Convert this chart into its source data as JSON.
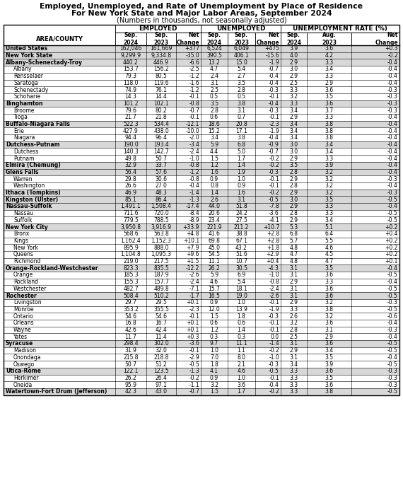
{
  "title1": "Employed, Unemployed, and Rate of Unemployment by Place of Residence",
  "title2": "For New York State and Major Labor Areas, September 2024",
  "title3": "(Numbers in thousands, not seasonally adjusted)",
  "rows": [
    [
      "United States",
      "162,046",
      "161,669",
      "+377",
      "6,524",
      "6,049",
      "+475",
      "3.9",
      "3.6",
      "+0.3"
    ],
    [
      "New York State",
      "9,299.9",
      "9,334.8",
      "-35.0",
      "390.5",
      "406.1",
      "-15.6",
      "4.0",
      "4.2",
      "-0.2"
    ],
    [
      "Albany-Schenectady-Troy",
      "440.2",
      "446.9",
      "-6.6",
      "13.2",
      "15.0",
      "-1.9",
      "2.9",
      "3.3",
      "-0.4"
    ],
    [
      "  Albany",
      "153.7",
      "156.2",
      "-2.5",
      "4.7",
      "5.4",
      "-0.7",
      "3.0",
      "3.4",
      "-0.4"
    ],
    [
      "  Rensselaer",
      "79.3",
      "80.5",
      "-1.2",
      "2.4",
      "2.7",
      "-0.4",
      "2.9",
      "3.3",
      "-0.4"
    ],
    [
      "  Saratoga",
      "118.0",
      "119.6",
      "-1.6",
      "3.1",
      "3.5",
      "-0.4",
      "2.5",
      "2.9",
      "-0.4"
    ],
    [
      "  Schenectady",
      "74.9",
      "76.1",
      "-1.2",
      "2.5",
      "2.8",
      "-0.3",
      "3.3",
      "3.6",
      "-0.3"
    ],
    [
      "  Schoharie",
      "14.3",
      "14.4",
      "-0.1",
      "0.5",
      "0.5",
      "-0.1",
      "3.2",
      "3.5",
      "-0.3"
    ],
    [
      "Binghamton",
      "101.2",
      "102.1",
      "-0.8",
      "3.5",
      "3.8",
      "-0.4",
      "3.3",
      "3.6",
      "-0.3"
    ],
    [
      "  Broome",
      "79.6",
      "80.2",
      "-0.7",
      "2.8",
      "3.1",
      "-0.3",
      "3.4",
      "3.7",
      "-0.3"
    ],
    [
      "  Tioga",
      "21.7",
      "21.8",
      "-0.1",
      "0.6",
      "0.7",
      "-0.1",
      "2.9",
      "3.3",
      "-0.4"
    ],
    [
      "Buffalo-Niagara Falls",
      "522.3",
      "534.4",
      "-12.1",
      "18.6",
      "20.8",
      "-2.3",
      "3.4",
      "3.8",
      "-0.4"
    ],
    [
      "  Erie",
      "427.9",
      "438.0",
      "-10.0",
      "15.2",
      "17.1",
      "-1.9",
      "3.4",
      "3.8",
      "-0.4"
    ],
    [
      "  Niagara",
      "94.4",
      "96.4",
      "-2.0",
      "3.4",
      "3.8",
      "-0.4",
      "3.4",
      "3.8",
      "-0.4"
    ],
    [
      "Dutchess-Putnam",
      "190.0",
      "193.4",
      "-3.4",
      "5.9",
      "6.8",
      "-0.9",
      "3.0",
      "3.4",
      "-0.4"
    ],
    [
      "  Dutchess",
      "140.3",
      "142.7",
      "-2.4",
      "4.4",
      "5.0",
      "-0.7",
      "3.0",
      "3.4",
      "-0.4"
    ],
    [
      "  Putnam",
      "49.8",
      "50.7",
      "-1.0",
      "1.5",
      "1.7",
      "-0.2",
      "2.9",
      "3.3",
      "-0.4"
    ],
    [
      "Elmira (Chemung)",
      "32.9",
      "33.7",
      "-0.8",
      "1.2",
      "1.4",
      "-0.2",
      "3.5",
      "3.9",
      "-0.4"
    ],
    [
      "Glens Falls",
      "56.4",
      "57.6",
      "-1.2",
      "1.6",
      "1.9",
      "-0.3",
      "2.8",
      "3.2",
      "-0.4"
    ],
    [
      "  Warren",
      "29.8",
      "30.6",
      "-0.8",
      "0.9",
      "1.0",
      "-0.1",
      "2.9",
      "3.2",
      "-0.3"
    ],
    [
      "  Washington",
      "26.6",
      "27.0",
      "-0.4",
      "0.8",
      "0.9",
      "-0.1",
      "2.8",
      "3.2",
      "-0.4"
    ],
    [
      "Ithaca (Tompkins)",
      "46.9",
      "48.3",
      "-1.4",
      "1.4",
      "1.6",
      "-0.2",
      "2.9",
      "3.2",
      "-0.3"
    ],
    [
      "Kingston (Ulster)",
      "85.1",
      "86.4",
      "-1.3",
      "2.6",
      "3.1",
      "-0.5",
      "3.0",
      "3.5",
      "-0.5"
    ],
    [
      "Nassau-Suffolk",
      "1,491.1",
      "1,508.4",
      "-17.4",
      "44.0",
      "51.8",
      "-7.8",
      "2.9",
      "3.3",
      "-0.4"
    ],
    [
      "  Nassau",
      "711.6",
      "720.0",
      "-8.4",
      "20.6",
      "24.2",
      "-3.6",
      "2.8",
      "3.3",
      "-0.5"
    ],
    [
      "  Suffolk",
      "779.5",
      "788.5",
      "-8.9",
      "23.4",
      "27.5",
      "-4.1",
      "2.9",
      "3.4",
      "-0.5"
    ],
    [
      "New York City",
      "3,950.8",
      "3,916.9",
      "+33.9",
      "221.9",
      "211.2",
      "+10.7",
      "5.3",
      "5.1",
      "+0.2"
    ],
    [
      "  Bronx",
      "568.6",
      "563.8",
      "+4.8",
      "41.6",
      "38.8",
      "+2.8",
      "6.8",
      "6.4",
      "+0.4"
    ],
    [
      "  Kings",
      "1,162.4",
      "1,152.3",
      "+10.1",
      "69.8",
      "67.1",
      "+2.8",
      "5.7",
      "5.5",
      "+0.2"
    ],
    [
      "  New York",
      "895.9",
      "888.0",
      "+7.9",
      "45.0",
      "43.2",
      "+1.8",
      "4.8",
      "4.6",
      "+0.2"
    ],
    [
      "  Queens",
      "1,104.8",
      "1,095.3",
      "+9.6",
      "54.5",
      "51.6",
      "+2.9",
      "4.7",
      "4.5",
      "+0.2"
    ],
    [
      "  Richmond",
      "219.0",
      "217.5",
      "+1.5",
      "11.1",
      "10.7",
      "+0.4",
      "4.8",
      "4.7",
      "+0.1"
    ],
    [
      "Orange-Rockland-Westchester",
      "823.3",
      "835.5",
      "-12.2",
      "26.2",
      "30.5",
      "-4.3",
      "3.1",
      "3.5",
      "-0.4"
    ],
    [
      "  Orange",
      "185.3",
      "187.9",
      "-2.6",
      "5.9",
      "6.9",
      "-1.0",
      "3.1",
      "3.6",
      "-0.5"
    ],
    [
      "  Rockland",
      "155.3",
      "157.7",
      "-2.4",
      "4.6",
      "5.4",
      "-0.8",
      "2.9",
      "3.3",
      "-0.4"
    ],
    [
      "  Westchester",
      "482.7",
      "489.8",
      "-7.1",
      "15.7",
      "18.1",
      "-2.4",
      "3.1",
      "3.6",
      "-0.5"
    ],
    [
      "Rochester",
      "508.4",
      "510.2",
      "-1.7",
      "16.5",
      "19.0",
      "-2.6",
      "3.1",
      "3.6",
      "-0.5"
    ],
    [
      "  Livingston",
      "29.7",
      "29.5",
      "+0.1",
      "0.9",
      "1.0",
      "-0.1",
      "2.9",
      "3.2",
      "-0.3"
    ],
    [
      "  Monroe",
      "353.2",
      "355.5",
      "-2.3",
      "12.0",
      "13.9",
      "-1.9",
      "3.3",
      "3.8",
      "-0.5"
    ],
    [
      "  Ontario",
      "54.6",
      "54.6",
      "-0.1",
      "1.5",
      "1.8",
      "-0.3",
      "2.6",
      "3.2",
      "-0.6"
    ],
    [
      "  Orleans",
      "16.8",
      "16.7",
      "+0.1",
      "0.6",
      "0.6",
      "-0.1",
      "3.2",
      "3.6",
      "-0.4"
    ],
    [
      "  Wayne",
      "42.6",
      "42.4",
      "+0.1",
      "1.2",
      "1.4",
      "-0.1",
      "2.8",
      "3.1",
      "-0.3"
    ],
    [
      "  Yates",
      "11.7",
      "11.4",
      "+0.3",
      "0.3",
      "0.3",
      "0.0",
      "2.5",
      "2.9",
      "-0.4"
    ],
    [
      "Syracuse",
      "298.4",
      "302.0",
      "-3.6",
      "9.7",
      "11.1",
      "-1.4",
      "3.1",
      "3.6",
      "-0.5"
    ],
    [
      "  Madison",
      "31.9",
      "32.0",
      "-0.1",
      "1.0",
      "1.1",
      "-0.2",
      "2.9",
      "3.4",
      "-0.5"
    ],
    [
      "  Onondaga",
      "215.8",
      "218.8",
      "-2.9",
      "7.0",
      "8.0",
      "-1.0",
      "3.1",
      "3.5",
      "-0.4"
    ],
    [
      "  Oswego",
      "50.7",
      "51.2",
      "-0.5",
      "1.8",
      "2.1",
      "-0.3",
      "3.4",
      "3.9",
      "-0.5"
    ],
    [
      "Utica-Rome",
      "122.1",
      "123.5",
      "-1.3",
      "4.1",
      "4.6",
      "-0.5",
      "3.3",
      "3.6",
      "-0.3"
    ],
    [
      "  Herkimer",
      "26.2",
      "26.4",
      "-0.2",
      "0.9",
      "1.0",
      "-0.1",
      "3.3",
      "3.5",
      "-0.3"
    ],
    [
      "  Oneida",
      "95.9",
      "97.1",
      "-1.1",
      "3.2",
      "3.6",
      "-0.4",
      "3.3",
      "3.6",
      "-0.3"
    ],
    [
      "Watertown-Fort Drum (Jefferson)",
      "42.3",
      "43.0",
      "-0.7",
      "1.5",
      "1.7",
      "-0.2",
      "3.3",
      "3.8",
      "-0.5"
    ]
  ],
  "bold_rows": [
    0,
    1,
    2,
    8,
    11,
    14,
    17,
    18,
    21,
    22,
    23,
    26,
    32,
    36,
    43,
    47,
    50
  ],
  "shaded_rows": [
    0,
    1,
    2,
    8,
    11,
    14,
    17,
    18,
    21,
    22,
    23,
    26,
    32,
    36,
    43,
    47,
    50
  ],
  "shaded_color": "#d8d8d8",
  "bg_color": "#ffffff"
}
